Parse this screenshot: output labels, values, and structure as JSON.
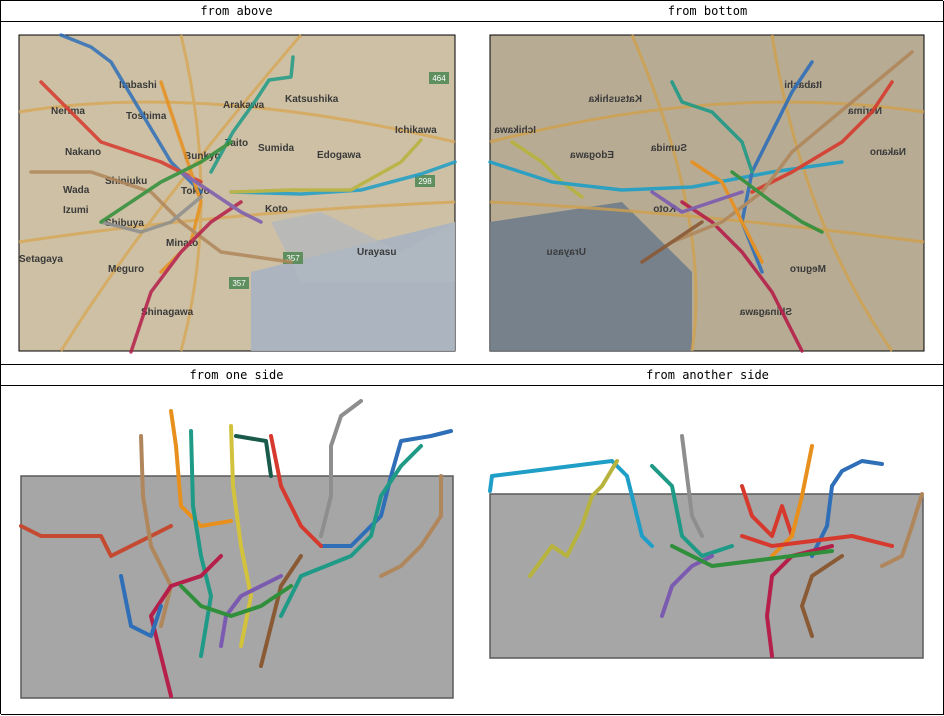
{
  "panels": [
    {
      "id": "above",
      "caption": "from above"
    },
    {
      "id": "bottom",
      "caption": "from bottom"
    },
    {
      "id": "side",
      "caption": "from one side"
    },
    {
      "id": "another-side",
      "caption": "from another side"
    }
  ],
  "map_labels": [
    "Itabashi",
    "Nerima",
    "Toshima",
    "Arakawa",
    "Katsushika",
    "Nakano",
    "Bunkyo",
    "Taito",
    "Sumida",
    "Edogawa",
    "Ichikawa",
    "Shinjuku",
    "Wada",
    "Izumi",
    "Tokyo",
    "Koto",
    "Shibuya",
    "Minato",
    "Setagaya",
    "Meguro",
    "Urayasu",
    "Shinagawa"
  ],
  "road_signs": [
    "464",
    "298",
    "357",
    "357"
  ],
  "line_colors": {
    "blue": "#2f6fb8",
    "teal": "#1f9a86",
    "green": "#2f8f3a",
    "olive": "#b7b33c",
    "orange": "#e8901e",
    "tan": "#b0875c",
    "red": "#d63a2e",
    "crimson": "#b51f4a",
    "purple": "#7b5bb0",
    "brown": "#8a5a35",
    "gray": "#8e8e8e",
    "cyan": "#1f9fc7",
    "yellow": "#d3c23b"
  }
}
